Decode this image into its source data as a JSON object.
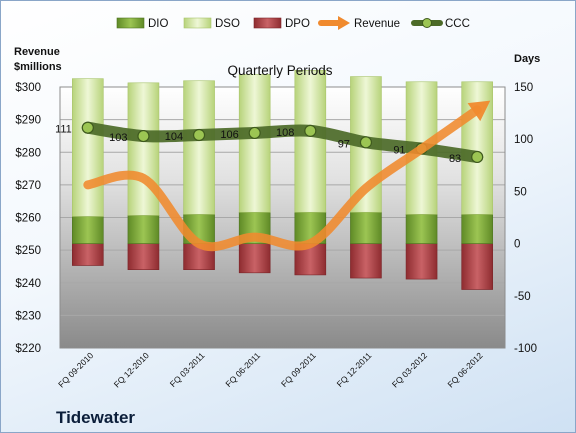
{
  "chart_data": {
    "type": "bar",
    "title": "Quarterly Periods",
    "company": "Tidewater",
    "left_axis_label": [
      "Revenue",
      "$millions"
    ],
    "right_axis_label": "Days",
    "categories": [
      "FQ 09-2010",
      "FQ 12-2010",
      "FQ 03-2011",
      "FQ 06-2011",
      "FQ 09-2011",
      "FQ 12-2011",
      "FQ 03-2012",
      "FQ 06-2012"
    ],
    "left_axis": {
      "min": 220,
      "max": 300,
      "step": 10,
      "tick_labels": [
        "$220",
        "$230",
        "$240",
        "$250",
        "$260",
        "$270",
        "$280",
        "$290",
        "$300"
      ]
    },
    "right_axis": {
      "min": -100,
      "max": 150,
      "step": 50,
      "tick_labels": [
        "-100",
        "-50",
        "0",
        "50",
        "100",
        "150"
      ]
    },
    "series": [
      {
        "name": "DIO",
        "color": "#7da63d",
        "values": [
          26,
          27,
          28,
          30,
          30,
          30,
          28,
          28
        ]
      },
      {
        "name": "DSO",
        "color": "#d4e8a6",
        "values": [
          132,
          127,
          128,
          132,
          136,
          130,
          127,
          127
        ]
      },
      {
        "name": "DPO",
        "color": "#b84a4e",
        "values": [
          -21,
          -25,
          -25,
          -28,
          -30,
          -33,
          -34,
          -44
        ]
      },
      {
        "name": "Revenue",
        "color": "#f08a2e",
        "values": [
          270,
          272,
          252,
          254,
          252,
          269,
          281,
          293
        ]
      },
      {
        "name": "CCC",
        "color": "#5a7a2e",
        "values": [
          111,
          103,
          104,
          106,
          108,
          97,
          91,
          83
        ]
      }
    ],
    "ccc_labels": [
      "111",
      "103",
      "104",
      "106",
      "108",
      "97",
      "91",
      "83"
    ],
    "legend_position": "top"
  }
}
